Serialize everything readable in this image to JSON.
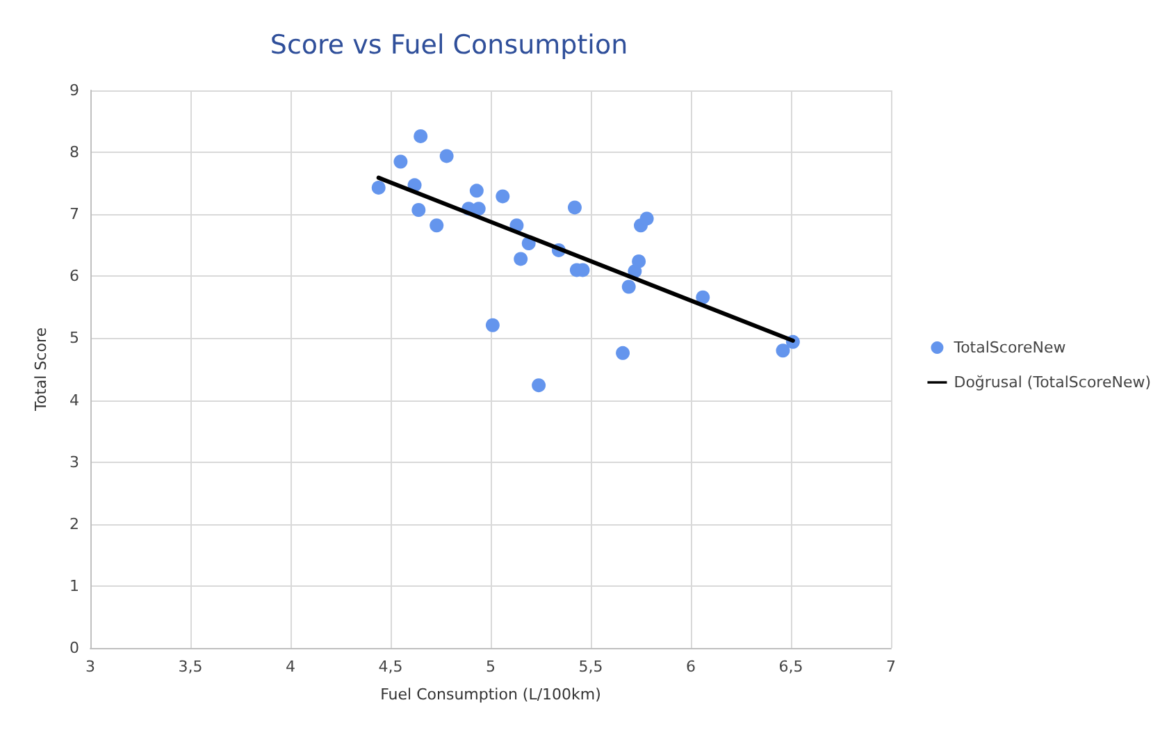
{
  "chart_data": {
    "type": "scatter",
    "title": "Score vs Fuel Consumption",
    "xlabel": "Fuel Consumption (L/100km)",
    "ylabel": "Total Score",
    "series": [
      {
        "name": "TotalScoreNew",
        "color": "#6495ed",
        "marker": "circle",
        "x": [
          4.44,
          4.55,
          4.65,
          4.62,
          4.64,
          4.73,
          4.78,
          4.89,
          4.93,
          4.94,
          5.01,
          5.06,
          5.13,
          5.15,
          5.19,
          5.24,
          5.34,
          5.42,
          5.43,
          5.46,
          5.66,
          5.69,
          5.72,
          5.74,
          5.75,
          5.78,
          6.06,
          6.46,
          6.51
        ],
        "values": [
          7.43,
          7.85,
          8.26,
          7.47,
          7.07,
          6.82,
          7.94,
          7.09,
          7.38,
          7.09,
          5.21,
          7.29,
          6.82,
          6.28,
          6.53,
          4.24,
          6.42,
          7.11,
          6.1,
          6.1,
          4.76,
          5.83,
          6.08,
          6.24,
          6.82,
          6.93,
          5.66,
          4.8,
          4.94
        ]
      },
      {
        "name": "Doğrusal (TotalScoreNew)",
        "type": "line",
        "color": "#000000",
        "marker": "none",
        "line_style": "solid",
        "x": [
          4.44,
          6.51
        ],
        "values": [
          7.59,
          4.96
        ]
      }
    ],
    "xlim": [
      3,
      7
    ],
    "xticks": [
      3,
      {
        "value": 3.5,
        "label": "3,5"
      },
      4,
      {
        "value": 4.5,
        "label": "4,5"
      },
      5,
      {
        "value": 5.5,
        "label": "5,5"
      },
      6,
      {
        "value": 6.5,
        "label": "6,5"
      },
      7
    ],
    "ylim": [
      0,
      9
    ],
    "yticks": [
      0,
      1,
      2,
      3,
      4,
      5,
      6,
      7,
      8,
      9
    ],
    "grid": true,
    "legend": "right"
  }
}
